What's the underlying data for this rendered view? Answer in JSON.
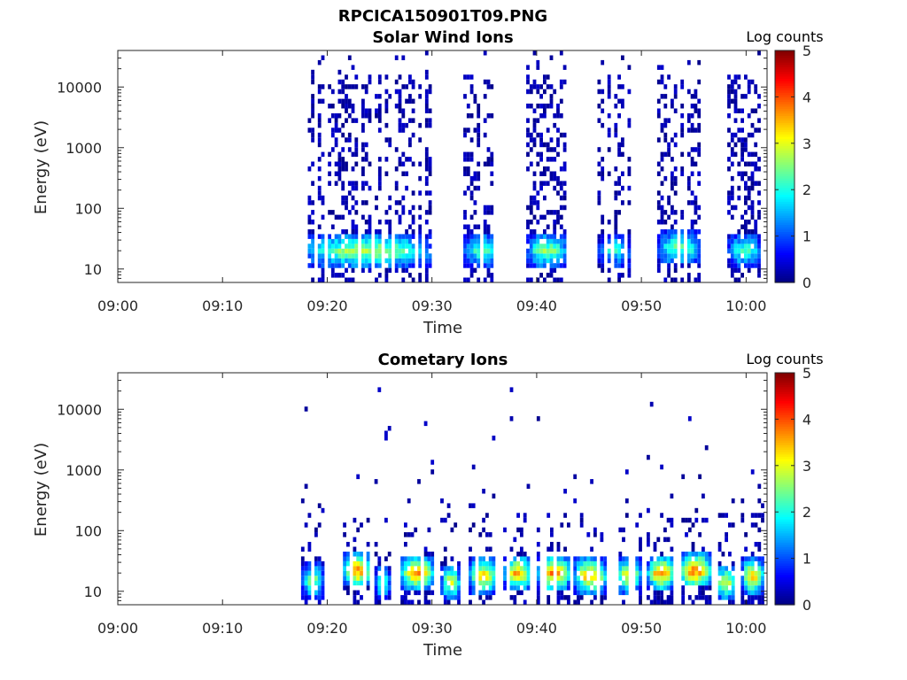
{
  "figure": {
    "title": "RPCICA150901T09.PNG"
  },
  "colors": {
    "jet": [
      "#00007f",
      "#0000ff",
      "#007fff",
      "#00ffff",
      "#7fff7f",
      "#ffff00",
      "#ff7f00",
      "#ff0000",
      "#7f0000"
    ],
    "axis": "#262626"
  },
  "chart_data": [
    {
      "type": "heatmap",
      "title": "Solar Wind Ions",
      "xlabel": "Time",
      "ylabel": "Energy (eV)",
      "xlim": [
        "09:00",
        "10:02"
      ],
      "x_ticks": [
        "09:00",
        "09:10",
        "09:20",
        "09:30",
        "09:40",
        "09:50",
        "10:00"
      ],
      "y_scale": "log",
      "ylim": [
        6,
        40000
      ],
      "y_ticks": [
        "10",
        "100",
        "1000",
        "10000"
      ],
      "colorbar": {
        "label": "Log counts",
        "range": [
          0,
          5
        ],
        "ticks": [
          "0",
          "1",
          "2",
          "3",
          "4",
          "5"
        ]
      },
      "bursts": [
        {
          "start_min": 17.5,
          "end_min": 29.8,
          "peak_energy_ev": 20,
          "peak_log_counts": 2.8
        },
        {
          "start_min": 33.0,
          "end_min": 36.5,
          "peak_energy_ev": 20,
          "peak_log_counts": 2.3
        },
        {
          "start_min": 39.0,
          "end_min": 42.8,
          "peak_energy_ev": 20,
          "peak_log_counts": 2.6
        },
        {
          "start_min": 45.8,
          "end_min": 48.8,
          "peak_energy_ev": 20,
          "peak_log_counts": 2.0
        },
        {
          "start_min": 51.5,
          "end_min": 55.5,
          "peak_energy_ev": 22,
          "peak_log_counts": 2.5
        },
        {
          "start_min": 58.2,
          "end_min": 61.2,
          "peak_energy_ev": 20,
          "peak_log_counts": 2.3
        }
      ]
    },
    {
      "type": "heatmap",
      "title": "Cometary Ions",
      "xlabel": "Time",
      "ylabel": "Energy (eV)",
      "xlim": [
        "09:00",
        "10:02"
      ],
      "x_ticks": [
        "09:00",
        "09:10",
        "09:20",
        "09:30",
        "09:40",
        "09:50",
        "10:00"
      ],
      "y_scale": "log",
      "ylim": [
        6,
        40000
      ],
      "y_ticks": [
        "10",
        "100",
        "1000",
        "10000"
      ],
      "colorbar": {
        "label": "Log counts",
        "range": [
          0,
          5
        ],
        "ticks": [
          "0",
          "1",
          "2",
          "3",
          "4",
          "5"
        ]
      },
      "bursts": [
        {
          "start_min": 17.5,
          "end_min": 19.5,
          "peak_energy_ev": 15,
          "peak_log_counts": 2.6
        },
        {
          "start_min": 21.5,
          "end_min": 24.0,
          "peak_energy_ev": 22,
          "peak_log_counts": 3.9
        },
        {
          "start_min": 24.5,
          "end_min": 25.8,
          "peak_energy_ev": 14,
          "peak_log_counts": 2.4
        },
        {
          "start_min": 27.0,
          "end_min": 30.0,
          "peak_energy_ev": 20,
          "peak_log_counts": 3.8
        },
        {
          "start_min": 30.8,
          "end_min": 32.5,
          "peak_energy_ev": 14,
          "peak_log_counts": 3.0
        },
        {
          "start_min": 33.5,
          "end_min": 36.0,
          "peak_energy_ev": 18,
          "peak_log_counts": 3.5
        },
        {
          "start_min": 36.8,
          "end_min": 39.3,
          "peak_energy_ev": 20,
          "peak_log_counts": 3.6
        },
        {
          "start_min": 40.0,
          "end_min": 43.0,
          "peak_energy_ev": 20,
          "peak_log_counts": 3.9
        },
        {
          "start_min": 43.5,
          "end_min": 46.5,
          "peak_energy_ev": 18,
          "peak_log_counts": 3.7
        },
        {
          "start_min": 47.5,
          "end_min": 49.8,
          "peak_energy_ev": 18,
          "peak_log_counts": 3.2
        },
        {
          "start_min": 50.5,
          "end_min": 53.0,
          "peak_energy_ev": 20,
          "peak_log_counts": 3.8
        },
        {
          "start_min": 53.5,
          "end_min": 56.5,
          "peak_energy_ev": 22,
          "peak_log_counts": 4.0
        },
        {
          "start_min": 57.0,
          "end_min": 58.8,
          "peak_energy_ev": 14,
          "peak_log_counts": 3.0
        },
        {
          "start_min": 59.5,
          "end_min": 61.5,
          "peak_energy_ev": 18,
          "peak_log_counts": 3.6
        }
      ]
    }
  ]
}
